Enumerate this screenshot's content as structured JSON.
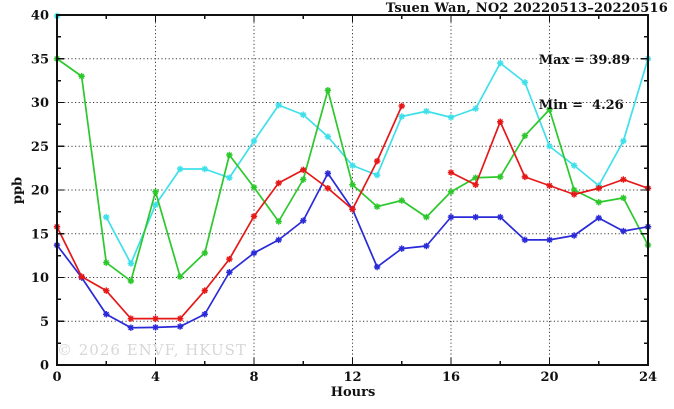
{
  "header": {
    "title": "Tsuen Wan, NO2 20220513–20220516"
  },
  "stats": {
    "max_line": "Max = 39.89",
    "min_line": "Min =  4.26"
  },
  "axes": {
    "x_label": "Hours",
    "y_label": "ppb"
  },
  "watermark": {
    "text": "© 2026 ENVF, HKUST"
  },
  "chart_data": {
    "type": "line",
    "title": "Tsuen Wan, NO2 20220513–20220516",
    "xlabel": "Hours",
    "ylabel": "ppb",
    "xlim": [
      0,
      24
    ],
    "ylim": [
      0,
      40
    ],
    "x": [
      0,
      1,
      2,
      3,
      4,
      5,
      6,
      7,
      8,
      9,
      10,
      11,
      12,
      13,
      14,
      15,
      16,
      17,
      18,
      19,
      20,
      21,
      22,
      23,
      24
    ],
    "x_major_ticks": [
      0,
      4,
      8,
      12,
      16,
      20,
      24
    ],
    "x_minor_ticks": [
      2,
      6,
      10,
      14,
      18,
      22
    ],
    "y_major_ticks": [
      0,
      5,
      10,
      15,
      20,
      25,
      30,
      35,
      40
    ],
    "y_minor_ticks": [
      2.5,
      7.5,
      12.5,
      17.5,
      22.5,
      27.5,
      32.5,
      37.5
    ],
    "x_grid": [
      4,
      8,
      12,
      16,
      20
    ],
    "y_grid": [
      5,
      10,
      15,
      20,
      25,
      30,
      35
    ],
    "grid": "dotted",
    "legend_position": "none",
    "annotations": {
      "max": 39.89,
      "min": 4.26
    },
    "marker": "asterisk",
    "series": [
      {
        "name": "cyan",
        "color": "#3fe0ea",
        "values": [
          39.89,
          null,
          16.9,
          11.6,
          18.3,
          22.4,
          22.4,
          21.4,
          25.6,
          29.7,
          28.6,
          26.1,
          22.8,
          21.7,
          28.4,
          29.0,
          28.3,
          29.3,
          34.5,
          32.3,
          25.0,
          22.8,
          20.5,
          25.6,
          35.0
        ]
      },
      {
        "name": "green",
        "color": "#2cc82c",
        "values": [
          35.0,
          33.0,
          11.7,
          9.6,
          19.8,
          10.1,
          12.8,
          24.0,
          20.3,
          16.4,
          21.2,
          31.4,
          20.6,
          18.1,
          18.8,
          16.9,
          19.8,
          21.4,
          21.5,
          26.2,
          29.2,
          20.0,
          18.6,
          19.1,
          13.7
        ]
      },
      {
        "name": "blue",
        "color": "#2a2ad8",
        "values": [
          13.7,
          10.0,
          5.8,
          4.26,
          4.3,
          4.4,
          5.8,
          10.6,
          12.8,
          14.3,
          16.5,
          21.9,
          17.8,
          11.2,
          13.3,
          13.6,
          16.9,
          16.9,
          16.9,
          14.3,
          14.3,
          14.8,
          16.8,
          15.3,
          15.8
        ]
      },
      {
        "name": "red",
        "color": "#e61717",
        "values": [
          15.8,
          10.1,
          8.5,
          5.3,
          5.3,
          5.3,
          8.5,
          12.1,
          17.0,
          20.8,
          22.3,
          20.2,
          17.8,
          23.3,
          29.6,
          null,
          22.0,
          20.6,
          27.8,
          21.5,
          20.5,
          19.5,
          20.2,
          21.2,
          20.2
        ]
      }
    ]
  }
}
